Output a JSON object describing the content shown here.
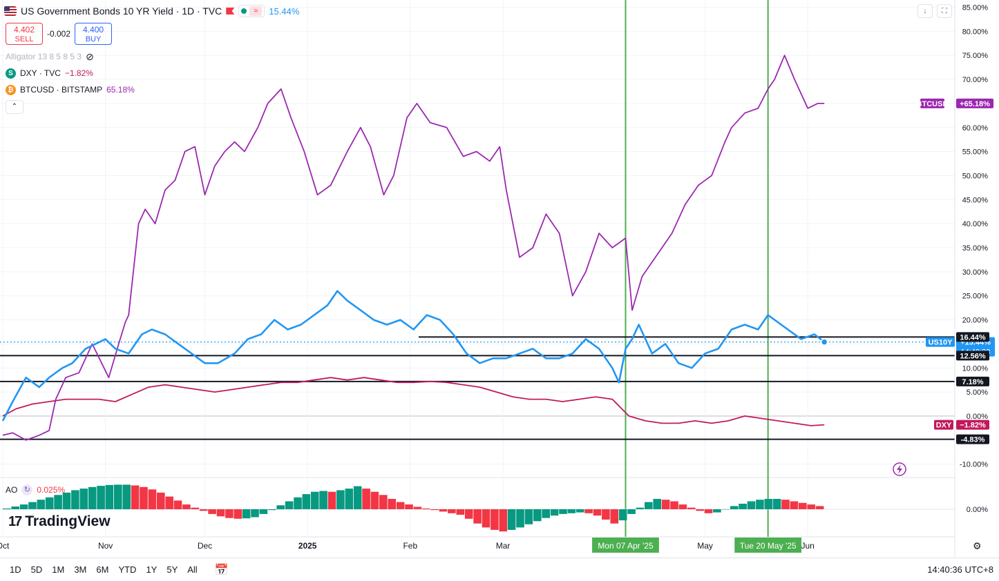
{
  "header": {
    "title": "US Government Bonds 10 YR Yield · 1D · TVC",
    "change": "15.44%",
    "sell_price": "4.402",
    "sell_label": "SELL",
    "spread": "-0.002",
    "buy_price": "4.400",
    "buy_label": "BUY"
  },
  "legend": {
    "indicator": "Alligator 13 8 5 8 5 3",
    "dxy_name": "DXY · TVC",
    "dxy_change": "−1.82%",
    "dxy_icon": "S",
    "btc_name": "BTCUSD · BITSTAMP",
    "btc_change": "65.18%",
    "btc_icon": "₿"
  },
  "ao": {
    "name": "AO",
    "value": "0.025%"
  },
  "brand": "TradingView",
  "bottom": {
    "ranges": [
      "1D",
      "5D",
      "1M",
      "3M",
      "6M",
      "YTD",
      "1Y",
      "5Y",
      "All"
    ],
    "clock": "14:40:36 UTC+8"
  },
  "colors": {
    "btc": "#9c27b0",
    "us10y": "#2196f3",
    "dxy": "#c2185b",
    "ao_up": "#089981",
    "ao_down": "#f23645",
    "vline": "#4caf50"
  },
  "chart_data": {
    "type": "line",
    "y_unit": "%",
    "ylim": [
      -15,
      85
    ],
    "y_ticks": [
      "85.00%",
      "80.00%",
      "75.00%",
      "70.00%",
      "65.00%",
      "60.00%",
      "55.00%",
      "50.00%",
      "45.00%",
      "40.00%",
      "35.00%",
      "30.00%",
      "25.00%",
      "20.00%",
      "15.00%",
      "10.00%",
      "5.00%",
      "0.00%",
      "-10.00%"
    ],
    "x_ticks": [
      "Oct",
      "Nov",
      "Dec",
      "2025",
      "Feb",
      "Mar",
      "May",
      "Jun"
    ],
    "series": [
      {
        "name": "BTCUSD",
        "label": "+65.18%",
        "color": "#9c27b0",
        "x": [
          "2024-10-01",
          "2024-10-04",
          "2024-10-08",
          "2024-10-12",
          "2024-10-15",
          "2024-10-17",
          "2024-10-20",
          "2024-10-24",
          "2024-10-28",
          "2024-11-02",
          "2024-11-05",
          "2024-11-07",
          "2024-11-08",
          "2024-11-11",
          "2024-11-13",
          "2024-11-16",
          "2024-11-19",
          "2024-11-22",
          "2024-11-25",
          "2024-11-28",
          "2024-12-01",
          "2024-12-04",
          "2024-12-07",
          "2024-12-10",
          "2024-12-13",
          "2024-12-17",
          "2024-12-20",
          "2024-12-24",
          "2024-12-27",
          "2024-12-31",
          "2025-01-04",
          "2025-01-08",
          "2025-01-13",
          "2025-01-17",
          "2025-01-20",
          "2025-01-24",
          "2025-01-27",
          "2025-01-31",
          "2025-02-03",
          "2025-02-07",
          "2025-02-12",
          "2025-02-17",
          "2025-02-21",
          "2025-02-25",
          "2025-02-28",
          "2025-03-02",
          "2025-03-06",
          "2025-03-10",
          "2025-03-14",
          "2025-03-18",
          "2025-03-22",
          "2025-03-26",
          "2025-03-30",
          "2025-04-03",
          "2025-04-07",
          "2025-04-09",
          "2025-04-12",
          "2025-04-16",
          "2025-04-21",
          "2025-04-25",
          "2025-04-29",
          "2025-05-03",
          "2025-05-07",
          "2025-05-09",
          "2025-05-13",
          "2025-05-17",
          "2025-05-20",
          "2025-05-22",
          "2025-05-25",
          "2025-05-28",
          "2025-06-01",
          "2025-06-04",
          "2025-06-06"
        ],
        "y": [
          -4,
          -3.5,
          -5,
          -4,
          -3,
          3.5,
          8,
          9,
          15,
          8,
          15,
          19.5,
          21,
          40,
          43,
          40,
          47,
          49,
          55,
          56,
          46,
          52,
          55,
          57,
          55,
          60,
          65,
          68,
          62,
          55,
          46,
          48,
          55,
          60,
          56,
          46,
          50,
          62,
          65,
          61,
          60,
          54,
          55,
          53,
          56,
          47,
          33,
          35,
          42,
          38,
          25,
          30,
          38,
          35,
          37,
          22,
          29,
          33,
          38,
          44,
          48,
          50,
          57,
          60,
          63,
          64,
          68,
          70,
          75,
          70,
          64,
          65,
          65
        ]
      },
      {
        "name": "US10Y",
        "label": "+15.44%",
        "color": "#2196f3",
        "x": [
          "2024-10-01",
          "2024-10-04",
          "2024-10-08",
          "2024-10-12",
          "2024-10-15",
          "2024-10-19",
          "2024-10-22",
          "2024-10-26",
          "2024-10-29",
          "2024-11-01",
          "2024-11-04",
          "2024-11-08",
          "2024-11-12",
          "2024-11-15",
          "2024-11-19",
          "2024-11-23",
          "2024-11-27",
          "2024-12-01",
          "2024-12-05",
          "2024-12-10",
          "2024-12-14",
          "2024-12-18",
          "2024-12-22",
          "2024-12-26",
          "2024-12-30",
          "2025-01-03",
          "2025-01-07",
          "2025-01-10",
          "2025-01-13",
          "2025-01-17",
          "2025-01-21",
          "2025-01-25",
          "2025-01-29",
          "2025-02-02",
          "2025-02-06",
          "2025-02-10",
          "2025-02-14",
          "2025-02-18",
          "2025-02-22",
          "2025-02-26",
          "2025-03-02",
          "2025-03-06",
          "2025-03-10",
          "2025-03-14",
          "2025-03-18",
          "2025-03-22",
          "2025-03-26",
          "2025-03-30",
          "2025-04-03",
          "2025-04-05",
          "2025-04-07",
          "2025-04-09",
          "2025-04-11",
          "2025-04-15",
          "2025-04-19",
          "2025-04-23",
          "2025-04-27",
          "2025-05-01",
          "2025-05-05",
          "2025-05-09",
          "2025-05-13",
          "2025-05-17",
          "2025-05-20",
          "2025-05-22",
          "2025-05-26",
          "2025-05-30",
          "2025-06-03",
          "2025-06-06"
        ],
        "y": [
          -1,
          3,
          8,
          6,
          8,
          10,
          11,
          14,
          15,
          16,
          14,
          13,
          17,
          18,
          17,
          15,
          13,
          11,
          11,
          13,
          16,
          17,
          20,
          18,
          19,
          21,
          23,
          26,
          24,
          22,
          20,
          19,
          20,
          18,
          21,
          20,
          17,
          13,
          11,
          12,
          12,
          13,
          14,
          12,
          12,
          13,
          16,
          14,
          10,
          7,
          14,
          16,
          19,
          13,
          15,
          11,
          10,
          13,
          14,
          18,
          19,
          18,
          21,
          20,
          18,
          16,
          17,
          15.4
        ]
      },
      {
        "name": "DXY",
        "label": "−1.82%",
        "color": "#c2185b",
        "x": [
          "2024-10-01",
          "2024-10-05",
          "2024-10-10",
          "2024-10-15",
          "2024-10-20",
          "2024-10-25",
          "2024-10-30",
          "2024-11-04",
          "2024-11-09",
          "2024-11-14",
          "2024-11-19",
          "2024-11-24",
          "2024-11-29",
          "2024-12-04",
          "2024-12-09",
          "2024-12-14",
          "2024-12-19",
          "2024-12-24",
          "2024-12-29",
          "2025-01-03",
          "2025-01-08",
          "2025-01-13",
          "2025-01-18",
          "2025-01-23",
          "2025-01-28",
          "2025-02-02",
          "2025-02-07",
          "2025-02-12",
          "2025-02-17",
          "2025-02-22",
          "2025-02-27",
          "2025-03-04",
          "2025-03-09",
          "2025-03-14",
          "2025-03-19",
          "2025-03-24",
          "2025-03-29",
          "2025-04-03",
          "2025-04-08",
          "2025-04-13",
          "2025-04-18",
          "2025-04-23",
          "2025-04-28",
          "2025-05-03",
          "2025-05-08",
          "2025-05-13",
          "2025-05-18",
          "2025-05-23",
          "2025-05-28",
          "2025-06-02",
          "2025-06-06"
        ],
        "y": [
          0,
          1.5,
          2.5,
          3,
          3.5,
          3.5,
          3.5,
          3,
          4.5,
          6,
          6.5,
          6,
          5.5,
          5,
          5.5,
          6,
          6.5,
          7,
          7,
          7.5,
          8,
          7.5,
          8,
          7.5,
          7,
          7,
          7.2,
          7,
          6.5,
          6,
          5,
          4,
          3.5,
          3.5,
          3,
          3.5,
          4,
          3.5,
          0,
          -1,
          -1.5,
          -1.5,
          -1,
          -1.5,
          -1,
          0,
          -0.5,
          -1,
          -1.5,
          -2,
          -1.82
        ]
      }
    ],
    "levels": [
      {
        "value": 16.44,
        "label": "16.44%"
      },
      {
        "value": 12.56,
        "label": "12.56%"
      },
      {
        "value": 7.18,
        "label": "7.18%"
      },
      {
        "value": -4.83,
        "label": "-4.83%"
      }
    ],
    "us10y_countdown": "14:49:23",
    "markers": [
      {
        "date": "2025-04-07",
        "label": "Mon 07 Apr '25"
      },
      {
        "date": "2025-05-20",
        "label": "Tue 20 May '25"
      }
    ],
    "ao_values": [
      0.1,
      0.35,
      0.6,
      0.9,
      1.2,
      1.5,
      1.8,
      2.1,
      2.4,
      2.6,
      2.8,
      2.95,
      3.05,
      3.1,
      3.1,
      3.0,
      2.8,
      2.5,
      2.1,
      1.6,
      1.1,
      0.6,
      0.2,
      -0.2,
      -0.6,
      -0.9,
      -1.1,
      -1.2,
      -1.15,
      -1.0,
      -0.6,
      -0.1,
      0.5,
      1.0,
      1.5,
      1.9,
      2.2,
      2.3,
      2.2,
      2.4,
      2.6,
      2.9,
      2.6,
      2.2,
      1.8,
      1.3,
      0.9,
      0.6,
      0.3,
      0.1,
      -0.1,
      -0.3,
      -0.5,
      -0.7,
      -1.2,
      -1.8,
      -2.3,
      -2.6,
      -2.8,
      -2.6,
      -2.3,
      -1.9,
      -1.5,
      -1.1,
      -0.8,
      -0.6,
      -0.5,
      -0.4,
      -0.5,
      -0.8,
      -1.3,
      -1.8,
      -1.4,
      -0.6,
      0.2,
      0.9,
      1.3,
      1.2,
      1.0,
      0.6,
      0.2,
      -0.2,
      -0.5,
      -0.4,
      0.0,
      0.4,
      0.7,
      1.0,
      1.2,
      1.3,
      1.3,
      1.2,
      1.0,
      0.8,
      0.6,
      0.4
    ]
  }
}
